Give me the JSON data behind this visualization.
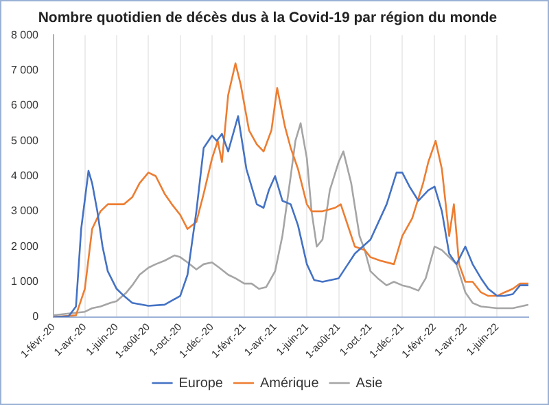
{
  "chart_data": {
    "type": "line",
    "title": "Nombre quotidien de décès dus à la Covid-19 par région du monde",
    "x": [
      "2020-02-01",
      "2020-03-01",
      "2020-03-15",
      "2020-03-25",
      "2020-04-08",
      "2020-04-15",
      "2020-04-25",
      "2020-05-05",
      "2020-05-15",
      "2020-06-01",
      "2020-06-15",
      "2020-07-01",
      "2020-08-01",
      "2020-09-01",
      "2020-10-01",
      "2020-10-15",
      "2020-11-01",
      "2020-11-15",
      "2020-12-01",
      "2020-12-10",
      "2020-12-20",
      "2021-01-01",
      "2021-01-20",
      "2021-02-05",
      "2021-02-25",
      "2021-03-10",
      "2021-03-20",
      "2021-04-01",
      "2021-04-15",
      "2021-05-01",
      "2021-05-15",
      "2021-06-01",
      "2021-06-15",
      "2021-07-01",
      "2021-08-01",
      "2021-09-01",
      "2021-10-01",
      "2021-11-01",
      "2021-11-20",
      "2021-12-01",
      "2021-12-15",
      "2022-01-01",
      "2022-01-20",
      "2022-02-01",
      "2022-02-15",
      "2022-03-01",
      "2022-03-15",
      "2022-04-01",
      "2022-04-15",
      "2022-05-01",
      "2022-05-15",
      "2022-06-01",
      "2022-06-15",
      "2022-07-01",
      "2022-07-15",
      "2022-07-31"
    ],
    "series": [
      {
        "name": "Europe",
        "color": "#4472c4",
        "values": [
          0,
          20,
          300,
          2500,
          4150,
          3800,
          3000,
          2000,
          1300,
          800,
          600,
          400,
          320,
          350,
          600,
          1200,
          3000,
          4800,
          5150,
          5000,
          5200,
          4700,
          5700,
          4200,
          3200,
          3100,
          3600,
          4000,
          3300,
          3200,
          2600,
          1500,
          1050,
          1000,
          1100,
          1800,
          2200,
          3200,
          4100,
          4100,
          3700,
          3300,
          3600,
          3700,
          3000,
          1800,
          1500,
          2000,
          1500,
          1100,
          800,
          600,
          600,
          650,
          900,
          900
        ]
      },
      {
        "name": "Amérique",
        "color": "#ed7d31",
        "x": [
          "2020-02-01",
          "2020-03-15",
          "2020-04-01",
          "2020-04-15",
          "2020-05-01",
          "2020-05-15",
          "2020-06-01",
          "2020-06-15",
          "2020-07-01",
          "2020-07-15",
          "2020-08-01",
          "2020-08-15",
          "2020-09-01",
          "2020-09-15",
          "2020-10-01",
          "2020-10-15",
          "2020-11-01",
          "2020-11-15",
          "2020-12-01",
          "2020-12-12",
          "2020-12-20",
          "2021-01-01",
          "2021-01-15",
          "2021-01-25",
          "2021-02-10",
          "2021-02-25",
          "2021-03-10",
          "2021-03-25",
          "2021-04-05",
          "2021-04-20",
          "2021-05-01",
          "2021-05-15",
          "2021-06-01",
          "2021-06-10",
          "2021-07-01",
          "2021-07-25",
          "2021-08-05",
          "2021-09-01",
          "2021-09-20",
          "2021-10-01",
          "2021-10-20",
          "2021-11-15",
          "2021-12-01",
          "2021-12-20",
          "2022-01-10",
          "2022-01-20",
          "2022-02-03",
          "2022-02-15",
          "2022-03-01",
          "2022-03-10",
          "2022-03-20",
          "2022-04-01",
          "2022-04-15",
          "2022-05-01",
          "2022-05-15",
          "2022-06-01",
          "2022-06-15",
          "2022-07-01",
          "2022-07-15",
          "2022-07-31"
        ],
        "values": [
          0,
          50,
          800,
          2500,
          3000,
          3200,
          3200,
          3200,
          3400,
          3800,
          4100,
          4000,
          3500,
          3200,
          2900,
          2500,
          2700,
          3500,
          4500,
          5000,
          4400,
          6300,
          7200,
          6600,
          5300,
          4900,
          4700,
          5300,
          6500,
          5400,
          4800,
          4200,
          3200,
          3000,
          3000,
          3100,
          3200,
          2000,
          1900,
          1700,
          1600,
          1500,
          2300,
          2800,
          3800,
          4400,
          5000,
          4200,
          2300,
          3200,
          1500,
          1000,
          1000,
          700,
          600,
          600,
          700,
          800,
          950,
          950
        ]
      },
      {
        "name": "Asie",
        "color": "#a5a5a5",
        "x": [
          "2020-02-01",
          "2020-03-01",
          "2020-04-01",
          "2020-04-15",
          "2020-05-01",
          "2020-05-20",
          "2020-06-01",
          "2020-06-20",
          "2020-07-01",
          "2020-07-15",
          "2020-08-01",
          "2020-08-15",
          "2020-09-01",
          "2020-09-20",
          "2020-10-01",
          "2020-10-15",
          "2020-11-01",
          "2020-11-15",
          "2020-12-01",
          "2020-12-15",
          "2021-01-01",
          "2021-01-15",
          "2021-02-01",
          "2021-02-15",
          "2021-03-01",
          "2021-03-15",
          "2021-04-01",
          "2021-04-15",
          "2021-05-01",
          "2021-05-10",
          "2021-05-20",
          "2021-06-01",
          "2021-06-10",
          "2021-06-20",
          "2021-07-01",
          "2021-07-15",
          "2021-08-01",
          "2021-08-10",
          "2021-08-25",
          "2021-09-10",
          "2021-09-20",
          "2021-10-01",
          "2021-10-15",
          "2021-11-01",
          "2021-11-15",
          "2021-12-01",
          "2021-12-15",
          "2022-01-01",
          "2022-01-15",
          "2022-02-01",
          "2022-02-15",
          "2022-03-01",
          "2022-03-15",
          "2022-04-01",
          "2022-04-15",
          "2022-05-01",
          "2022-06-01",
          "2022-07-01",
          "2022-07-31"
        ],
        "values": [
          50,
          100,
          150,
          250,
          300,
          400,
          450,
          700,
          900,
          1200,
          1400,
          1500,
          1600,
          1750,
          1700,
          1550,
          1350,
          1500,
          1550,
          1400,
          1200,
          1100,
          950,
          950,
          800,
          850,
          1300,
          2300,
          4000,
          5000,
          5500,
          4500,
          3000,
          2000,
          2200,
          3600,
          4400,
          4700,
          3800,
          2300,
          1900,
          1300,
          1100,
          900,
          1000,
          900,
          850,
          750,
          1100,
          2000,
          1900,
          1700,
          1500,
          700,
          400,
          300,
          250,
          250,
          350
        ]
      }
    ],
    "xlim": [
      "2020-02-01",
      "2022-07-31"
    ],
    "xticks": [
      {
        "value": "2020-02-01",
        "label": "1-févr.-20"
      },
      {
        "value": "2020-04-01",
        "label": "1-avr.-20"
      },
      {
        "value": "2020-06-01",
        "label": "1-juin-20"
      },
      {
        "value": "2020-08-01",
        "label": "1-août-20"
      },
      {
        "value": "2020-10-01",
        "label": "1-oct.-20"
      },
      {
        "value": "2020-12-01",
        "label": "1-déc.-20"
      },
      {
        "value": "2021-02-01",
        "label": "1-févr.-21"
      },
      {
        "value": "2021-04-01",
        "label": "1-avr.-21"
      },
      {
        "value": "2021-06-01",
        "label": "1-juin-21"
      },
      {
        "value": "2021-08-01",
        "label": "1-août-21"
      },
      {
        "value": "2021-10-01",
        "label": "1-oct.-21"
      },
      {
        "value": "2021-12-01",
        "label": "1-déc.-21"
      },
      {
        "value": "2022-02-01",
        "label": "1-févr.-22"
      },
      {
        "value": "2022-04-01",
        "label": "1-avr.-22"
      },
      {
        "value": "2022-06-01",
        "label": "1-juin-22"
      }
    ],
    "ylim": [
      0,
      8000
    ],
    "yticks": [
      {
        "value": 0,
        "label": "0"
      },
      {
        "value": 1000,
        "label": "1 000"
      },
      {
        "value": 2000,
        "label": "2 000"
      },
      {
        "value": 3000,
        "label": "3 000"
      },
      {
        "value": 4000,
        "label": "4 000"
      },
      {
        "value": 5000,
        "label": "5 000"
      },
      {
        "value": 6000,
        "label": "6 000"
      },
      {
        "value": 7000,
        "label": "7 000"
      },
      {
        "value": 8000,
        "label": "8 000"
      }
    ],
    "grid": "x",
    "legend": "bottom",
    "marker": "none",
    "line_style": "solid"
  }
}
